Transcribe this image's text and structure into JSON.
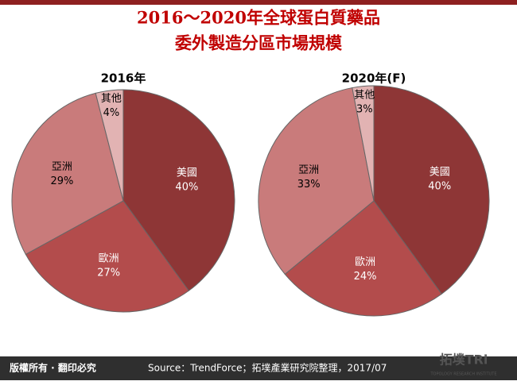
{
  "header": {
    "title_lines": [
      "2016～2020年全球蛋白質藥品",
      "委外製造分區市場規模"
    ]
  },
  "chart_data": [
    {
      "type": "pie",
      "title": "2016年",
      "categories": [
        "美國",
        "歐洲",
        "亞洲",
        "其他"
      ],
      "values": [
        40,
        27,
        29,
        4
      ],
      "value_labels": [
        "40%",
        "27%",
        "29%",
        "4%"
      ],
      "colors": [
        "#8e3636",
        "#b34c4c",
        "#c97b7b",
        "#e2b3b3"
      ]
    },
    {
      "type": "pie",
      "title": "2020年(F)",
      "categories": [
        "美國",
        "歐洲",
        "亞洲",
        "其他"
      ],
      "values": [
        40,
        24,
        33,
        3
      ],
      "value_labels": [
        "40%",
        "24%",
        "33%",
        "3%"
      ],
      "colors": [
        "#8e3636",
        "#b34c4c",
        "#c97b7b",
        "#e2b3b3"
      ]
    }
  ],
  "footer": {
    "rights": "版權所有 · 翻印必究",
    "source": "Source：TrendForce；拓墣產業研究院整理，2017/07",
    "logo": "拓墣TRi",
    "logo_sub": "TOPOLOGY RESEARCH INSTITUTE"
  }
}
